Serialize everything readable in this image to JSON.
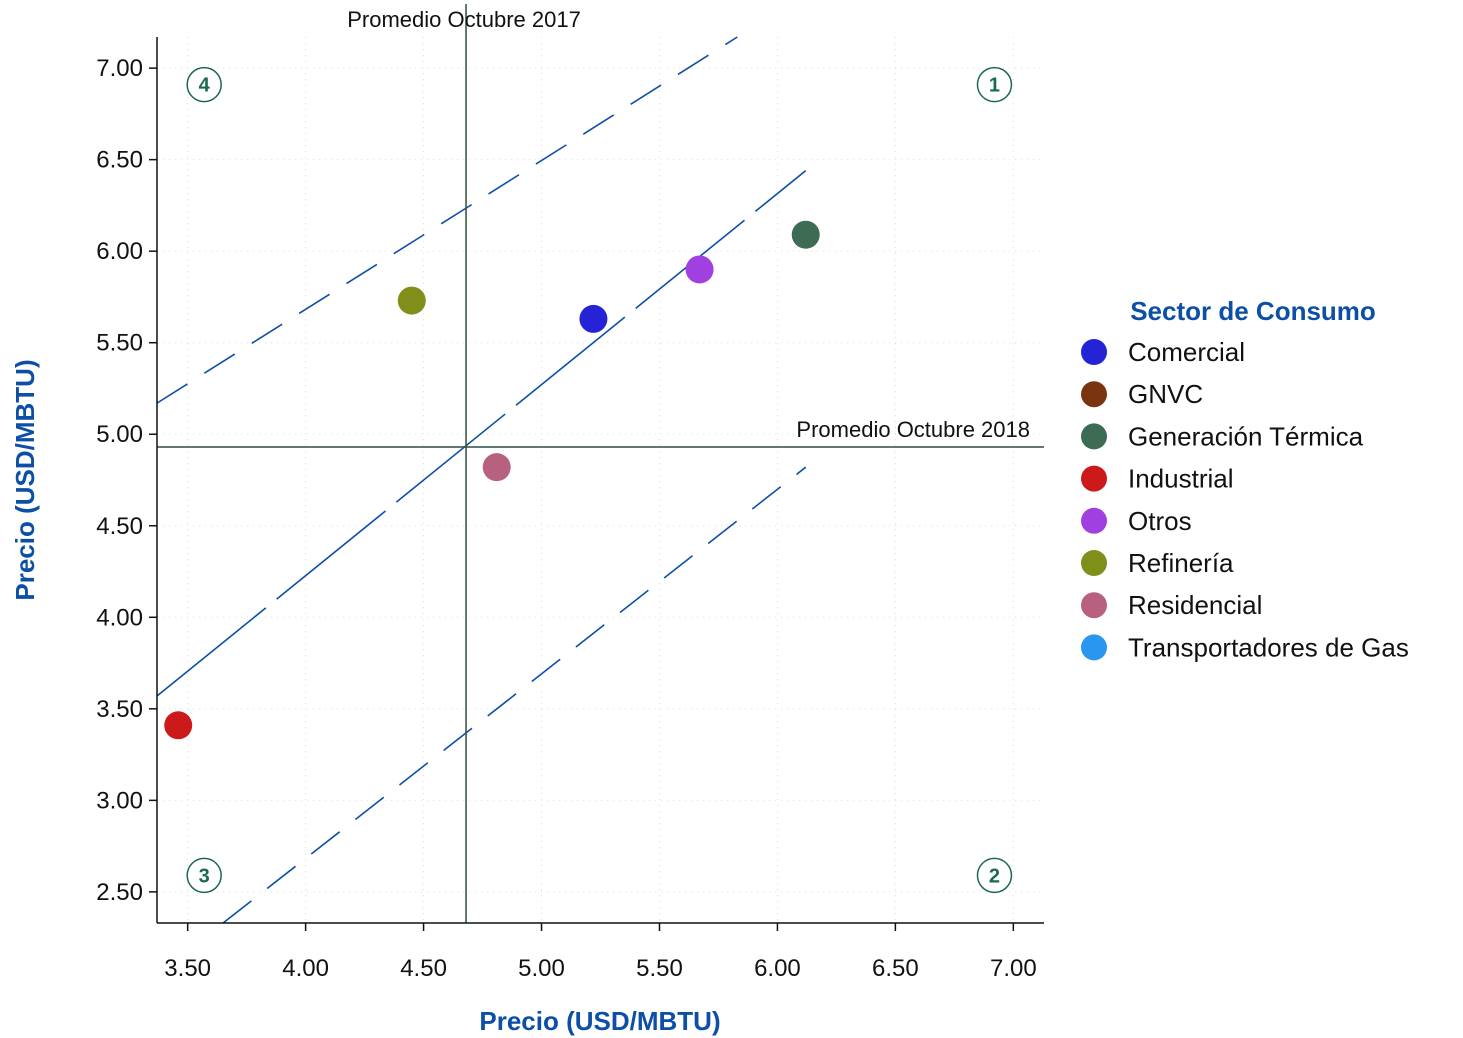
{
  "chart_data": {
    "type": "scatter",
    "xlabel": "Precio (USD/MBTU)",
    "ylabel": "Precio (USD/MBTU)",
    "xlim": [
      3.37,
      7.13
    ],
    "ylim": [
      2.33,
      7.17
    ],
    "x_ticks": [
      "3.50",
      "4.00",
      "4.50",
      "5.00",
      "5.50",
      "6.00",
      "6.50",
      "7.00"
    ],
    "y_ticks": [
      "2.50",
      "3.00",
      "3.50",
      "4.00",
      "4.50",
      "5.00",
      "5.50",
      "6.00",
      "6.50",
      "7.00"
    ],
    "grid": "dotted",
    "legend_title": "Sector de Consumo",
    "legend_position": "right",
    "series": [
      {
        "name": "Comercial",
        "color": "#2424d6",
        "points": [
          [
            5.22,
            5.63
          ]
        ]
      },
      {
        "name": "GNVC",
        "color": "#7a3510",
        "points": []
      },
      {
        "name": "Generación Térmica",
        "color": "#3d6b53",
        "points": [
          [
            6.12,
            6.09
          ]
        ]
      },
      {
        "name": "Industrial",
        "color": "#cc1a1a",
        "points": [
          [
            3.46,
            3.41
          ]
        ]
      },
      {
        "name": "Otros",
        "color": "#a040e0",
        "points": [
          [
            5.67,
            5.9
          ]
        ]
      },
      {
        "name": "Refinería",
        "color": "#7f8f1a",
        "points": [
          [
            4.45,
            5.73
          ]
        ]
      },
      {
        "name": "Residencial",
        "color": "#b8607f",
        "points": [
          [
            4.81,
            4.82
          ]
        ]
      },
      {
        "name": "Transportadores de Gas",
        "color": "#2a96f0",
        "points": []
      }
    ],
    "reference_lines": {
      "vertical": {
        "x": 4.68,
        "label": "Promedio Octubre 2017"
      },
      "horizontal": {
        "y": 4.93,
        "label": "Promedio Octubre 2018"
      }
    },
    "fit_line": {
      "color": "#0d4fa6",
      "from": [
        3.37,
        3.57
      ],
      "to": [
        6.12,
        6.44
      ]
    },
    "band_upper": {
      "color": "#0d4fa6",
      "from": [
        3.37,
        5.17
      ],
      "to": [
        5.83,
        7.17
      ]
    },
    "band_lower": {
      "color": "#0d4fa6",
      "from": [
        3.65,
        2.33
      ],
      "to": [
        6.12,
        4.82
      ]
    },
    "quadrant_labels": [
      "1",
      "2",
      "3",
      "4"
    ],
    "quadrant_positions": {
      "1": [
        6.92,
        6.91
      ],
      "2": [
        6.92,
        2.59
      ],
      "3": [
        3.57,
        2.59
      ],
      "4": [
        3.57,
        6.91
      ]
    }
  }
}
